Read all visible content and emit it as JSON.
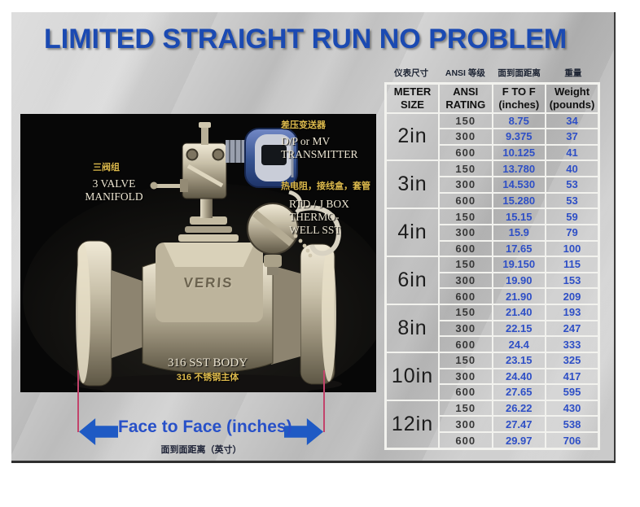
{
  "title": "LIMITED STRAIGHT RUN NO PROBLEM",
  "colors": {
    "title_blue": "#1b4ab2",
    "value_blue": "#2e4fc6",
    "arrow_blue": "#1f5ac4",
    "measure_line_magenta": "#c2436b",
    "annotation_gold": "#dcb94c",
    "slide_gray": "#c6c6c6"
  },
  "photo": {
    "logo": "VERIS",
    "annotations": {
      "transmitter_cn": "差压变送器",
      "transmitter_en": "D/P or MV\nTRANSMITTER",
      "manifold_cn": "三阀组",
      "manifold_en": "3 VALVE\nMANIFOLD",
      "rtd_cn": "热电阻，接线盒，套管",
      "rtd_en": "RTD  / J BOX\nTHERMO-\nWELL SST",
      "body_en": "316 SST BODY",
      "body_cn": "316 不锈钢主体"
    },
    "dimension_label": "Face to Face (inches)",
    "dimension_label_cn": "面到面距离（英寸）"
  },
  "table": {
    "cn_headers": [
      "仪表尺寸",
      "ANSI 等级",
      "面到面距离",
      "重量"
    ],
    "headers": [
      "METER\nSIZE",
      "ANSI\nRATING",
      "F TO F\n(inches)",
      "Weight\n(pounds)"
    ],
    "groups": [
      {
        "size": "2in",
        "rows": [
          [
            "150",
            "8.75",
            "34"
          ],
          [
            "300",
            "9.375",
            "37"
          ],
          [
            "600",
            "10.125",
            "41"
          ]
        ]
      },
      {
        "size": "3in",
        "rows": [
          [
            "150",
            "13.780",
            "40"
          ],
          [
            "300",
            "14.530",
            "53"
          ],
          [
            "600",
            "15.280",
            "53"
          ]
        ]
      },
      {
        "size": "4in",
        "rows": [
          [
            "150",
            "15.15",
            "59"
          ],
          [
            "300",
            "15.9",
            "79"
          ],
          [
            "600",
            "17.65",
            "100"
          ]
        ]
      },
      {
        "size": "6in",
        "rows": [
          [
            "150",
            "19.150",
            "115"
          ],
          [
            "300",
            "19.90",
            "153"
          ],
          [
            "600",
            "21.90",
            "209"
          ]
        ]
      },
      {
        "size": "8in",
        "rows": [
          [
            "150",
            "21.40",
            "193"
          ],
          [
            "300",
            "22.15",
            "247"
          ],
          [
            "600",
            "24.4",
            "333"
          ]
        ]
      },
      {
        "size": "10in",
        "rows": [
          [
            "150",
            "23.15",
            "325"
          ],
          [
            "300",
            "24.40",
            "417"
          ],
          [
            "600",
            "27.65",
            "595"
          ]
        ]
      },
      {
        "size": "12in",
        "rows": [
          [
            "150",
            "26.22",
            "430"
          ],
          [
            "300",
            "27.47",
            "538"
          ],
          [
            "600",
            "29.97",
            "706"
          ]
        ]
      }
    ]
  }
}
